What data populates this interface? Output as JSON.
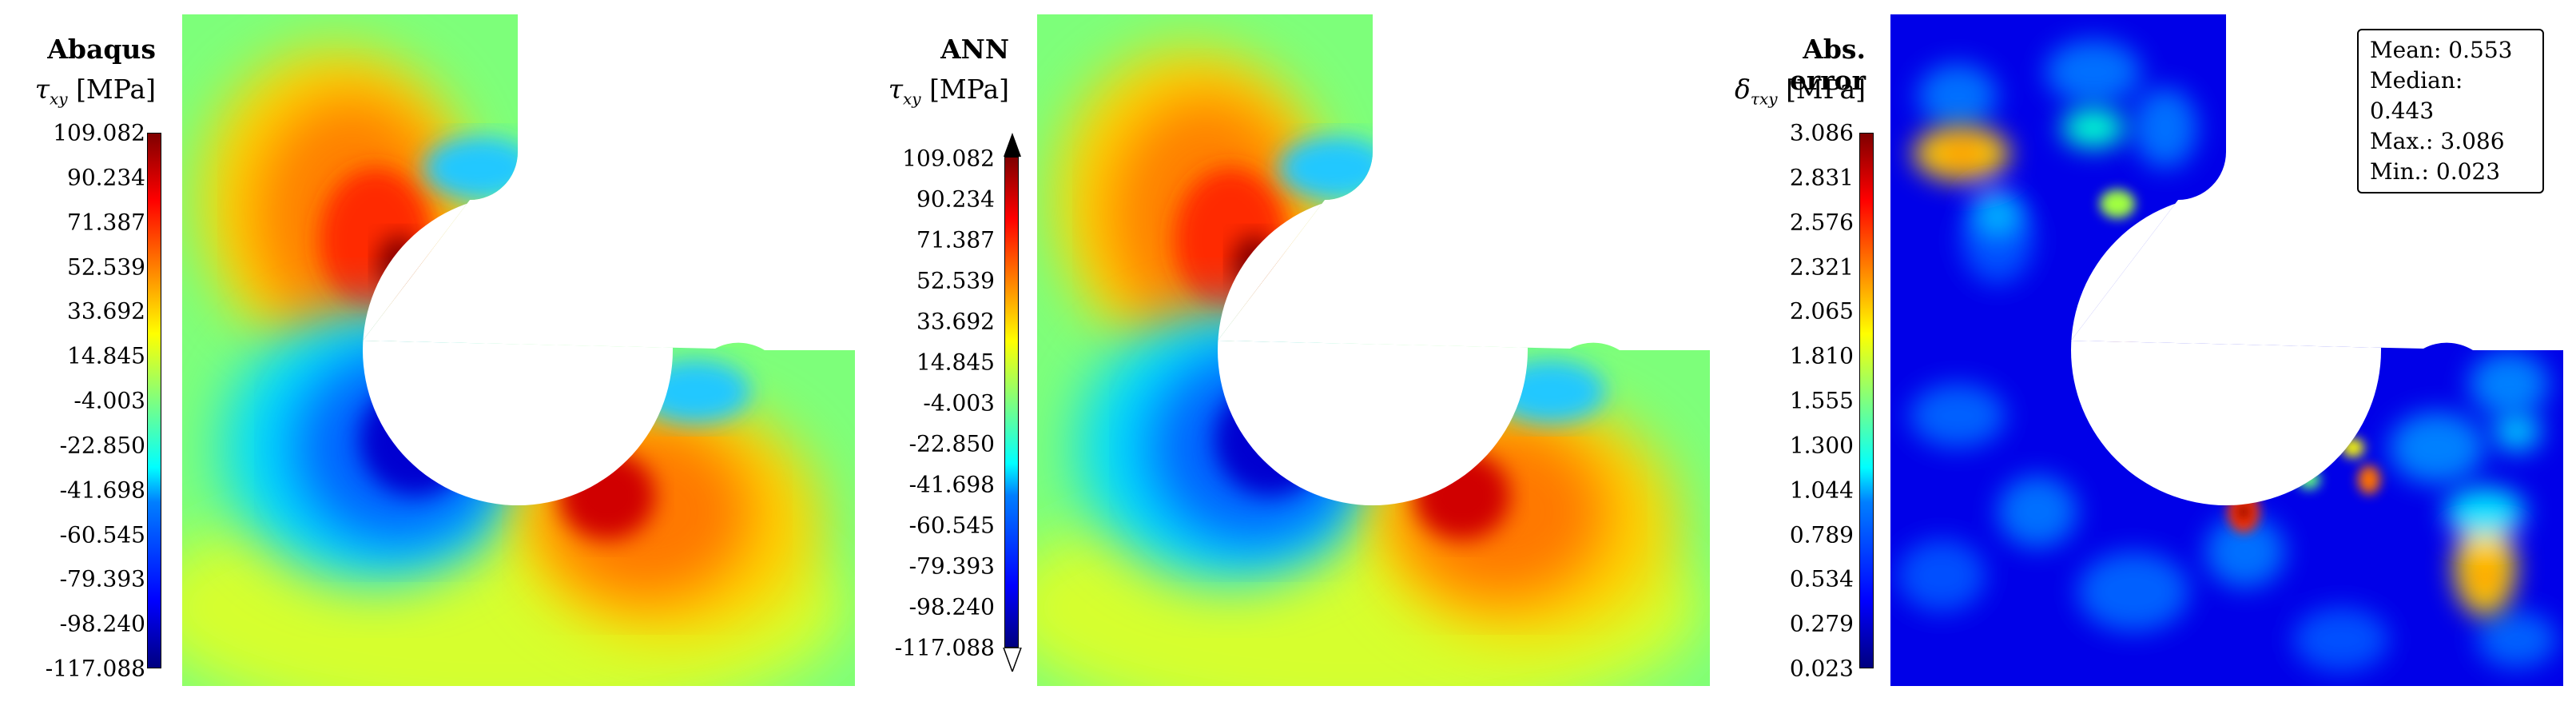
{
  "panels": [
    {
      "title": "Abaqus",
      "symbol": "τ",
      "subscript": "xy",
      "unit": "[MPa]",
      "ticks": [
        "109.082",
        "90.234",
        "71.387",
        "52.539",
        "33.692",
        "14.845",
        "-4.003",
        "-22.850",
        "-41.698",
        "-60.545",
        "-79.393",
        "-98.240",
        "-117.088"
      ]
    },
    {
      "title": "ANN",
      "symbol": "τ",
      "subscript": "xy",
      "unit": "[MPa]",
      "ticks": [
        "109.082",
        "90.234",
        "71.387",
        "52.539",
        "33.692",
        "14.845",
        "-4.003",
        "-22.850",
        "-41.698",
        "-60.545",
        "-79.393",
        "-98.240",
        "-117.088"
      ]
    },
    {
      "title": "Abs. error",
      "symbol": "δ",
      "subscript": "τxy",
      "unit": "[MPa]",
      "ticks": [
        "3.086",
        "2.831",
        "2.576",
        "2.321",
        "2.065",
        "1.810",
        "1.555",
        "1.300",
        "1.044",
        "0.789",
        "0.534",
        "0.279",
        "0.023"
      ]
    }
  ],
  "stats": {
    "mean": "Mean: 0.553",
    "median": "Median: 0.443",
    "max": "Max.: 3.086",
    "min": "Min.: 0.023"
  },
  "colormap": "jet"
}
